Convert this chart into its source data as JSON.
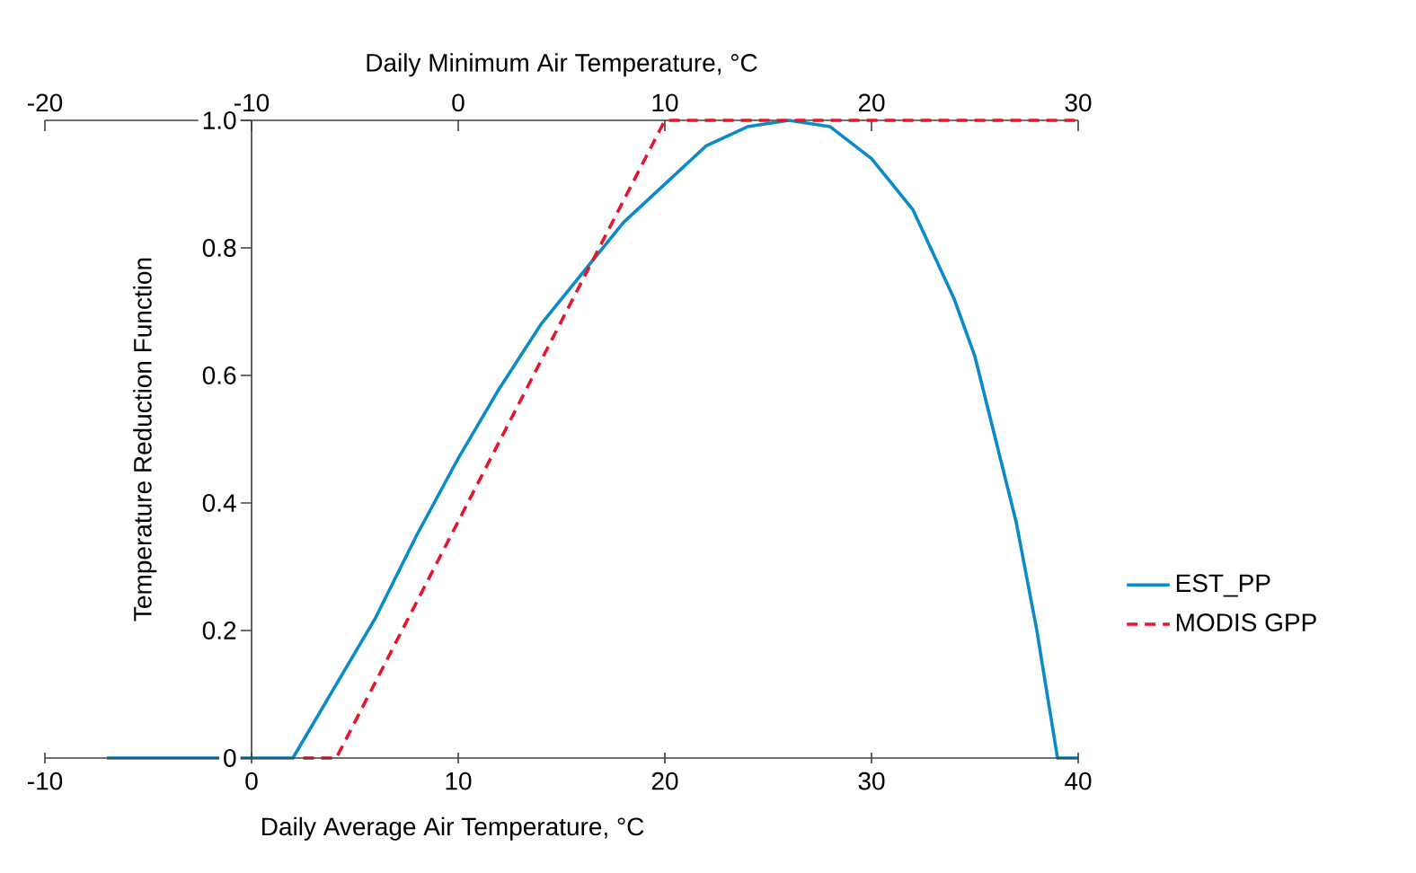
{
  "chart_data": {
    "type": "line",
    "xlabel": "Daily Average Air Temperature, °C",
    "x2label": "Daily Minimum Air Temperature, °C",
    "ylabel": "Temperature Reduction Function",
    "xlim": [
      -10,
      40
    ],
    "xticks": [
      -10,
      0,
      10,
      20,
      30,
      40
    ],
    "x2lim": [
      -20,
      30
    ],
    "x2ticks": [
      -20,
      -10,
      0,
      10,
      20,
      30
    ],
    "ylim": [
      0,
      1
    ],
    "yticks": [
      0,
      0.2,
      0.4,
      0.6,
      0.8,
      {
        "value": 1,
        "label": "1.0"
      }
    ],
    "legend": "right",
    "marker": "none",
    "series": [
      {
        "name": "EST_PP",
        "color": "#0a8ac8",
        "line_style": "solid",
        "x": [
          -7,
          2,
          4,
          6,
          8,
          10,
          12,
          14,
          16,
          18,
          20,
          22,
          24,
          26,
          28,
          30,
          32,
          34,
          35,
          36,
          37,
          38,
          38.6,
          39,
          40
        ],
        "values": [
          0,
          0,
          0.11,
          0.22,
          0.35,
          0.47,
          0.58,
          0.68,
          0.76,
          0.84,
          0.9,
          0.96,
          0.99,
          1.0,
          0.99,
          0.94,
          0.86,
          0.72,
          0.63,
          0.5,
          0.37,
          0.2,
          0.08,
          0,
          0
        ]
      },
      {
        "name": "MODIS GPP",
        "color": "#e3162b",
        "line_style": "dashed",
        "x": [
          2.5,
          4.1,
          20,
          40
        ],
        "values": [
          0,
          0,
          1,
          1
        ]
      }
    ]
  }
}
